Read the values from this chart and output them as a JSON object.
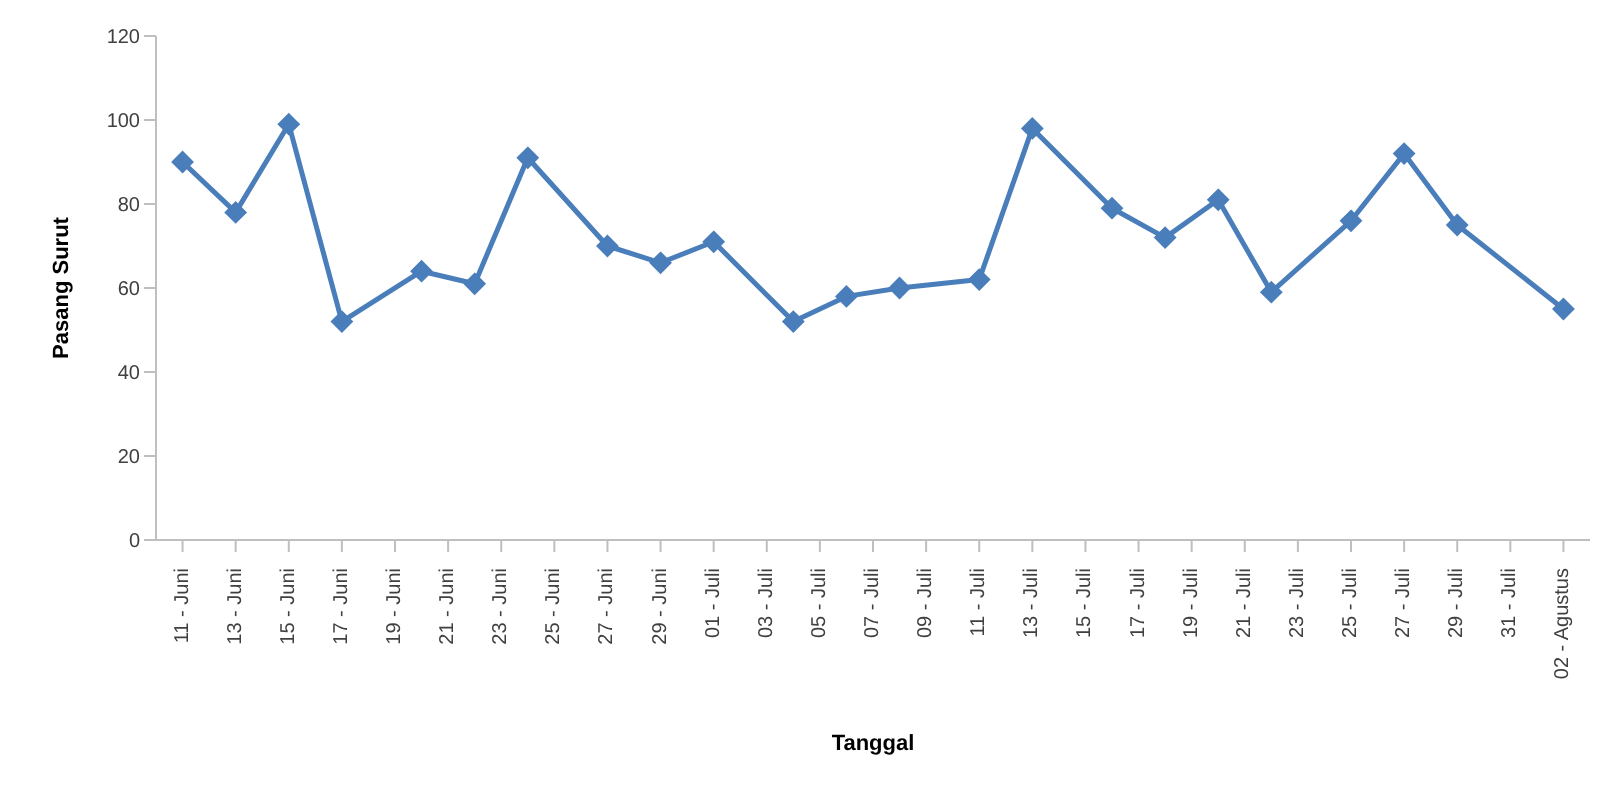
{
  "chart_data": {
    "type": "line",
    "xlabel": "Tanggal",
    "ylabel": "Pasang Surut",
    "x": [
      "--06-11",
      "--06-13",
      "--06-15",
      "--06-17",
      "--06-20",
      "--06-22",
      "--06-24",
      "--06-27",
      "--06-29",
      "--07-01",
      "--07-04",
      "--07-06",
      "--07-08",
      "--07-11",
      "--07-13",
      "--07-16",
      "--07-18",
      "--07-20",
      "--07-22",
      "--07-25",
      "--07-27",
      "--07-29",
      "--08-02"
    ],
    "series": [
      {
        "color": "#4a7ebb",
        "values": [
          90,
          78,
          99,
          52,
          64,
          61,
          91,
          70,
          66,
          71,
          52,
          58,
          60,
          62,
          98,
          79,
          72,
          81,
          59,
          76,
          92,
          75,
          55
        ]
      }
    ],
    "xlim": [
      "--06-10",
      "--08-03"
    ],
    "xticks": [
      {
        "value": "--06-11",
        "label": "11 - Juni"
      },
      {
        "value": "--06-13",
        "label": "13 - Juni"
      },
      {
        "value": "--06-15",
        "label": "15 - Juni"
      },
      {
        "value": "--06-17",
        "label": "17 - Juni"
      },
      {
        "value": "--06-19",
        "label": "19 - Juni"
      },
      {
        "value": "--06-21",
        "label": "21 - Juni"
      },
      {
        "value": "--06-23",
        "label": "23 - Juni"
      },
      {
        "value": "--06-25",
        "label": "25 - Juni"
      },
      {
        "value": "--06-27",
        "label": "27 - Juni"
      },
      {
        "value": "--06-29",
        "label": "29 - Juni"
      },
      {
        "value": "--07-01",
        "label": "01 - Juli"
      },
      {
        "value": "--07-03",
        "label": "03 - Juli"
      },
      {
        "value": "--07-05",
        "label": "05 - Juli"
      },
      {
        "value": "--07-07",
        "label": "07 - Juli"
      },
      {
        "value": "--07-09",
        "label": "09 - Juli"
      },
      {
        "value": "--07-11",
        "label": "11 - Juli"
      },
      {
        "value": "--07-13",
        "label": "13 - Juli"
      },
      {
        "value": "--07-15",
        "label": "15 - Juli"
      },
      {
        "value": "--07-17",
        "label": "17 - Juli"
      },
      {
        "value": "--07-19",
        "label": "19 - Juli"
      },
      {
        "value": "--07-21",
        "label": "21 - Juli"
      },
      {
        "value": "--07-23",
        "label": "23 - Juli"
      },
      {
        "value": "--07-25",
        "label": "25 - Juli"
      },
      {
        "value": "--07-27",
        "label": "27 - Juli"
      },
      {
        "value": "--07-29",
        "label": "29 - Juli"
      },
      {
        "value": "--07-31",
        "label": "31 - Juli"
      },
      {
        "value": "--08-02",
        "label": "02 - Agustus"
      }
    ],
    "ylim": [
      0,
      120
    ],
    "yticks": [
      0,
      20,
      40,
      60,
      80,
      100,
      120
    ],
    "grid": false,
    "legend": false,
    "marker": "diamond",
    "line_style": "solid"
  }
}
